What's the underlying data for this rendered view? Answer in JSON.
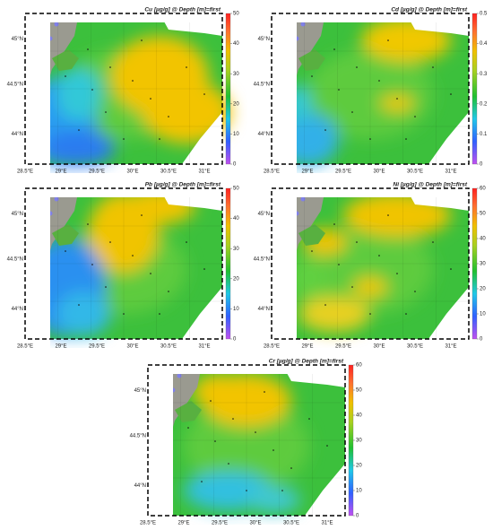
{
  "lon_labels": [
    "28.5°E",
    "29°E",
    "29.5°E",
    "30°E",
    "30.5°E",
    "31°E"
  ],
  "lat_labels": [
    "45°N",
    "44.5°N",
    "44°N"
  ],
  "panels": [
    {
      "title": "Cu [µg/g] @ Depth [m]=first",
      "colorbar_ticks": [
        0,
        10,
        20,
        30,
        40,
        50
      ]
    },
    {
      "title": "Cd [µg/g] @ Depth [m]=first",
      "colorbar_ticks": [
        0,
        0.1,
        0.2,
        0.3,
        0.4,
        0.5
      ]
    },
    {
      "title": "Pb [µg/g] @ Depth [m]=first",
      "colorbar_ticks": [
        0,
        10,
        20,
        30,
        40,
        50
      ]
    },
    {
      "title": "Ni [µg/g] @ Depth [m]=first",
      "colorbar_ticks": [
        0,
        10,
        20,
        30,
        40,
        50,
        60
      ]
    },
    {
      "title": "Cr [µg/g] @ Depth [m]=first",
      "colorbar_ticks": [
        0,
        10,
        20,
        30,
        40,
        50,
        60
      ]
    }
  ]
}
